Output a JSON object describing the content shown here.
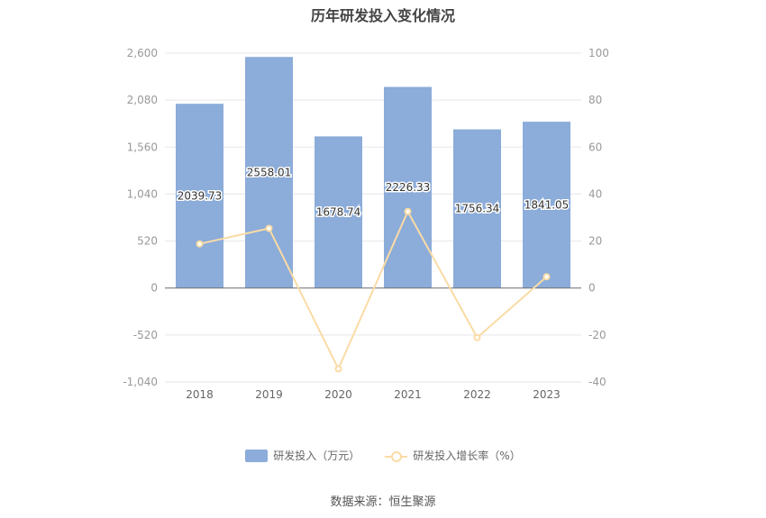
{
  "chart_data": {
    "type": "bar",
    "title": "历年研发投入变化情况",
    "categories": [
      "2018",
      "2019",
      "2020",
      "2021",
      "2022",
      "2023"
    ],
    "series": [
      {
        "name": "研发投入（万元）",
        "type": "bar",
        "axis": "left",
        "values": [
          2039.73,
          2558.01,
          1678.74,
          2226.33,
          1756.34,
          1841.05
        ],
        "labels": [
          "2039.73",
          "2558.01",
          "1678.74",
          "2226.33",
          "1756.34",
          "1841.05"
        ],
        "color": "#8cacd9"
      },
      {
        "name": "研发投入增长率（%）",
        "type": "line",
        "axis": "right",
        "values": [
          18.8,
          25.4,
          -34.4,
          32.6,
          -21.1,
          4.8
        ],
        "color": "#fadba5"
      }
    ],
    "y_left": {
      "ticks": [
        "-1,040",
        "-520",
        "0",
        "520",
        "1,040",
        "1,560",
        "2,080",
        "2,600"
      ],
      "min": -1040,
      "max": 2600
    },
    "y_right": {
      "ticks": [
        "-40",
        "-20",
        "0",
        "20",
        "40",
        "60",
        "80",
        "100"
      ],
      "min": -40,
      "max": 100
    },
    "grid": true,
    "legend_position": "bottom"
  },
  "source": "数据来源：恒生聚源"
}
